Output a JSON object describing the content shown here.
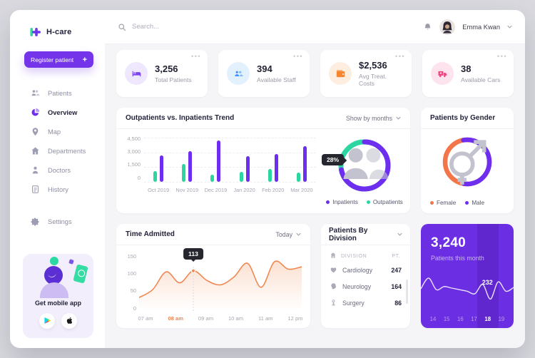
{
  "app": {
    "name": "H-care"
  },
  "topbar": {
    "search_placeholder": "Search...",
    "user_name": "Emma Kwan"
  },
  "sidebar": {
    "register_label": "Register patient",
    "register_plus": "+",
    "items": [
      {
        "label": "Patients",
        "icon": "patients-icon",
        "active": false
      },
      {
        "label": "Overview",
        "icon": "overview-icon",
        "active": true
      },
      {
        "label": "Map",
        "icon": "map-icon",
        "active": false
      },
      {
        "label": "Departments",
        "icon": "departments-icon",
        "active": false
      },
      {
        "label": "Doctors",
        "icon": "doctors-icon",
        "active": false
      },
      {
        "label": "History",
        "icon": "history-icon",
        "active": false
      }
    ],
    "settings": {
      "label": "Settings",
      "icon": "settings-icon"
    },
    "mobile_app": {
      "label": "Get mobile app",
      "stores": [
        "google-play-icon",
        "apple-icon"
      ]
    }
  },
  "stats": [
    {
      "value": "3,256",
      "label": "Total Patients",
      "icon": "bed-icon",
      "color": "#7b43ee",
      "bg": "#efe7fd"
    },
    {
      "value": "394",
      "label": "Available Staff",
      "icon": "staff-icon",
      "color": "#3f97f6",
      "bg": "#e3f1fe"
    },
    {
      "value": "$2,536",
      "label": "Avg Treat. Costs",
      "icon": "wallet-icon",
      "color": "#f5862e",
      "bg": "#fdeee0"
    },
    {
      "value": "38",
      "label": "Available Cars",
      "icon": "ambulance-icon",
      "color": "#f0447c",
      "bg": "#fde3ed"
    }
  ],
  "chart_data": [
    {
      "type": "bar",
      "title": "Outpatients vs. Inpatients Trend",
      "filter_label": "Show by months",
      "categories": [
        "Oct 2019",
        "Nov 2019",
        "Dec 2019",
        "Jan 2020",
        "Feb 2020",
        "Mar 2020"
      ],
      "series": [
        {
          "name": "Outpatients",
          "color": "#2bd6a1",
          "values": [
            1100,
            1800,
            750,
            1000,
            1300,
            950
          ]
        },
        {
          "name": "Inpatients",
          "color": "#6d2ef0",
          "values": [
            2700,
            3100,
            4200,
            2600,
            2800,
            3600
          ]
        }
      ],
      "ylim": [
        0,
        4500
      ],
      "yticks": [
        "4,500",
        "3,000",
        "1,500",
        "0"
      ],
      "legend": [
        {
          "label": "Inpatients",
          "color": "#6d2ef0"
        },
        {
          "label": "Outpatients",
          "color": "#2bd6a1"
        }
      ],
      "donut": {
        "tooltip": "28%",
        "segments": [
          {
            "label": "Outpatients",
            "value": 28,
            "color": "#2bd6a1"
          },
          {
            "label": "Inpatients",
            "value": 72,
            "color": "#6d2ef0"
          }
        ]
      }
    },
    {
      "type": "donut",
      "title": "Patients by Gender",
      "segments": [
        {
          "label": "Female",
          "value": 45,
          "color": "#f2764a"
        },
        {
          "label": "Male",
          "value": 55,
          "color": "#6d2ef0"
        }
      ]
    },
    {
      "type": "line",
      "title": "Time Admitted",
      "filter_label": "Today",
      "x": [
        "07 am",
        "08 am",
        "09 am",
        "10 am",
        "11 am",
        "12 pm"
      ],
      "highlight_x": "08 am",
      "yticks": [
        "150",
        "100",
        "50",
        "0"
      ],
      "ylim": [
        0,
        150
      ],
      "points": [
        35,
        58,
        110,
        78,
        113,
        85,
        72,
        95,
        135,
        65,
        140,
        118,
        125
      ],
      "tooltip": {
        "value": "113",
        "x_index": 4
      },
      "color": "#f0854d"
    },
    {
      "type": "table",
      "title": "Patients By Division",
      "columns": [
        "DIVISION",
        "PT."
      ],
      "rows": [
        {
          "icon": "cardiology-icon",
          "division": "Cardiology",
          "pt": "247"
        },
        {
          "icon": "neurology-icon",
          "division": "Neurology",
          "pt": "164"
        },
        {
          "icon": "surgery-icon",
          "division": "Surgery",
          "pt": "86"
        }
      ]
    },
    {
      "type": "sparkline",
      "value": "3,240",
      "label": "Patients this month",
      "tooltip": "232",
      "days": [
        "14",
        "15",
        "16",
        "17",
        "18",
        "19"
      ],
      "active_day": "18",
      "points": [
        52,
        18,
        55,
        45,
        50,
        55,
        60,
        68,
        38,
        85,
        30,
        60,
        48
      ]
    }
  ]
}
